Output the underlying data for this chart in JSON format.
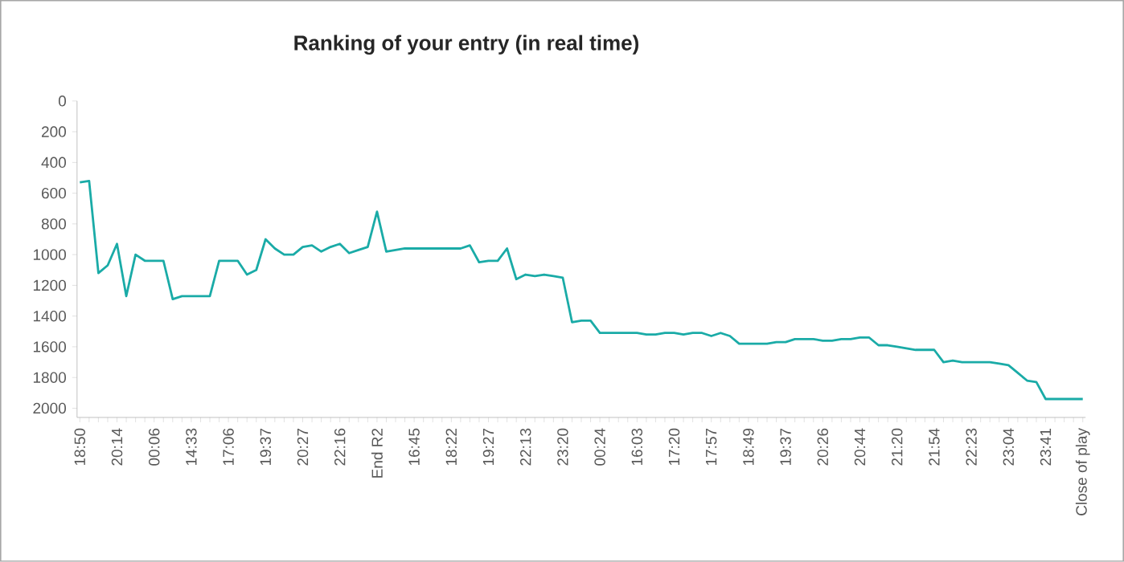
{
  "chart_data": {
    "type": "line",
    "title": "Ranking of your entry (in real time)",
    "categories": [
      "18:50",
      null,
      null,
      null,
      "20:14",
      null,
      null,
      null,
      "00:06",
      null,
      null,
      null,
      "14:33",
      null,
      null,
      null,
      "17:06",
      null,
      null,
      null,
      "19:37",
      null,
      null,
      null,
      "20:27",
      null,
      null,
      null,
      "22:16",
      null,
      null,
      null,
      "End R2",
      null,
      null,
      null,
      "16:45",
      null,
      null,
      null,
      "18:22",
      null,
      null,
      null,
      "19:27",
      null,
      null,
      null,
      "22:13",
      null,
      null,
      null,
      "23:20",
      null,
      null,
      null,
      "00:24",
      null,
      null,
      null,
      "16:03",
      null,
      null,
      null,
      "17:20",
      null,
      null,
      null,
      "17:57",
      null,
      null,
      null,
      "18:49",
      null,
      null,
      null,
      "19:37",
      null,
      null,
      null,
      "20:26",
      null,
      null,
      null,
      "20:44",
      null,
      null,
      null,
      "21:20",
      null,
      null,
      null,
      "21:54",
      null,
      null,
      null,
      "22:23",
      null,
      null,
      null,
      "23:04",
      null,
      null,
      null,
      "23:41",
      null,
      null,
      null,
      "Close of play"
    ],
    "values": [
      530,
      520,
      1120,
      1070,
      930,
      1270,
      1000,
      1040,
      1040,
      1040,
      1290,
      1270,
      1270,
      1270,
      1270,
      1040,
      1040,
      1040,
      1130,
      1100,
      900,
      960,
      1000,
      1000,
      950,
      940,
      980,
      950,
      930,
      990,
      970,
      950,
      720,
      980,
      970,
      960,
      960,
      960,
      960,
      960,
      960,
      960,
      940,
      1050,
      1040,
      1040,
      960,
      1160,
      1130,
      1140,
      1130,
      1140,
      1150,
      1440,
      1430,
      1430,
      1510,
      1510,
      1510,
      1510,
      1510,
      1520,
      1520,
      1510,
      1510,
      1520,
      1510,
      1510,
      1530,
      1510,
      1530,
      1580,
      1580,
      1580,
      1580,
      1570,
      1570,
      1550,
      1550,
      1550,
      1560,
      1560,
      1550,
      1550,
      1540,
      1540,
      1590,
      1590,
      1600,
      1610,
      1620,
      1620,
      1620,
      1700,
      1690,
      1700,
      1700,
      1700,
      1700,
      1710,
      1720,
      1770,
      1820,
      1830,
      1940,
      1940,
      1940,
      1940,
      1940
    ],
    "color": "#1aaba7",
    "ylim": [
      2060,
      0
    ],
    "yticks": [
      0,
      200,
      400,
      600,
      800,
      1000,
      1200,
      1400,
      1600,
      1800,
      2000
    ],
    "grid": false,
    "marker": "none",
    "line_style": "solid"
  }
}
